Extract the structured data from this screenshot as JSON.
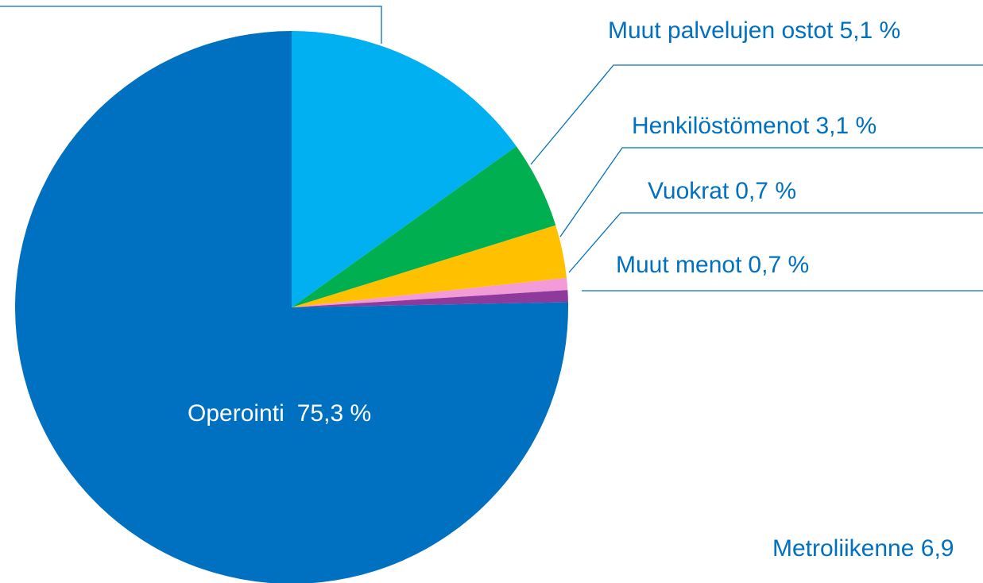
{
  "chart_data": {
    "type": "pie",
    "categories": [
      null,
      "Muut palvelujen ostot",
      "Henkilöstömenot",
      "Vuokrat",
      "Muut menot",
      "Operointi"
    ],
    "values": [
      15.1,
      5.1,
      3.1,
      0.7,
      0.7,
      75.3
    ],
    "value_labels": [
      null,
      "5,1 %",
      "3,1 %",
      "0,7 %",
      "0,7 %",
      "75,3 %"
    ],
    "colors": [
      "#00b0f0",
      "#00b050",
      "#ffc000",
      "#f39ad9",
      "#8e3a9d",
      "#0070c0"
    ],
    "annotation": "Metroliikenne 6,9"
  }
}
